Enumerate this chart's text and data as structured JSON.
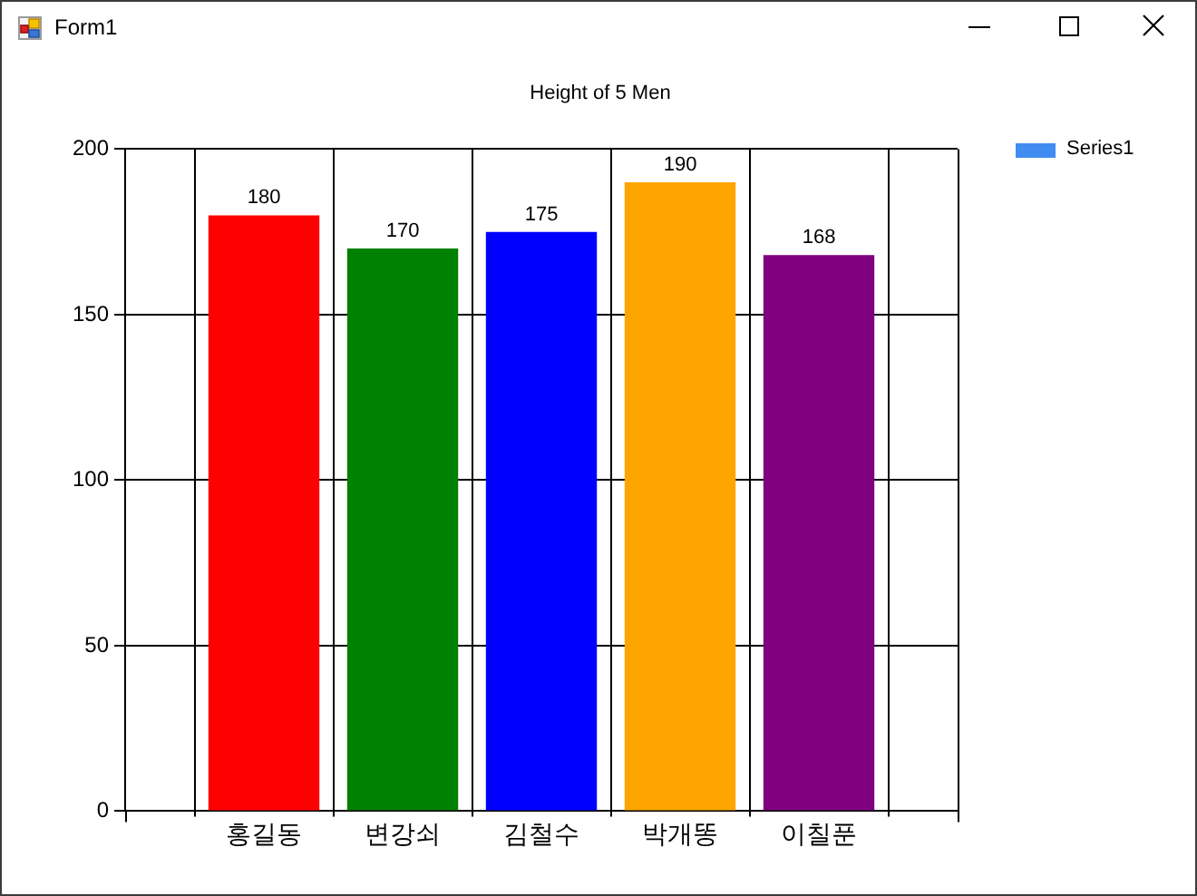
{
  "chart_data": {
    "type": "bar",
    "title": "Height of 5 Men",
    "categories": [
      "홍길동",
      "변강쇠",
      "김철수",
      "박개똥",
      "이칠푼"
    ],
    "series": [
      {
        "name": "Series1",
        "color": "#418cf0",
        "colors": [
          "#ff0000",
          "#008000",
          "#0000ff",
          "#ffa500",
          "#800080"
        ],
        "values": [
          180,
          170,
          175,
          190,
          168
        ]
      }
    ],
    "ylim": [
      0,
      200
    ],
    "yticks": [
      0,
      50,
      100,
      150,
      200
    ],
    "grid": true,
    "legend": "top right",
    "data_labels": true,
    "annotations": [
      "Form1"
    ]
  }
}
